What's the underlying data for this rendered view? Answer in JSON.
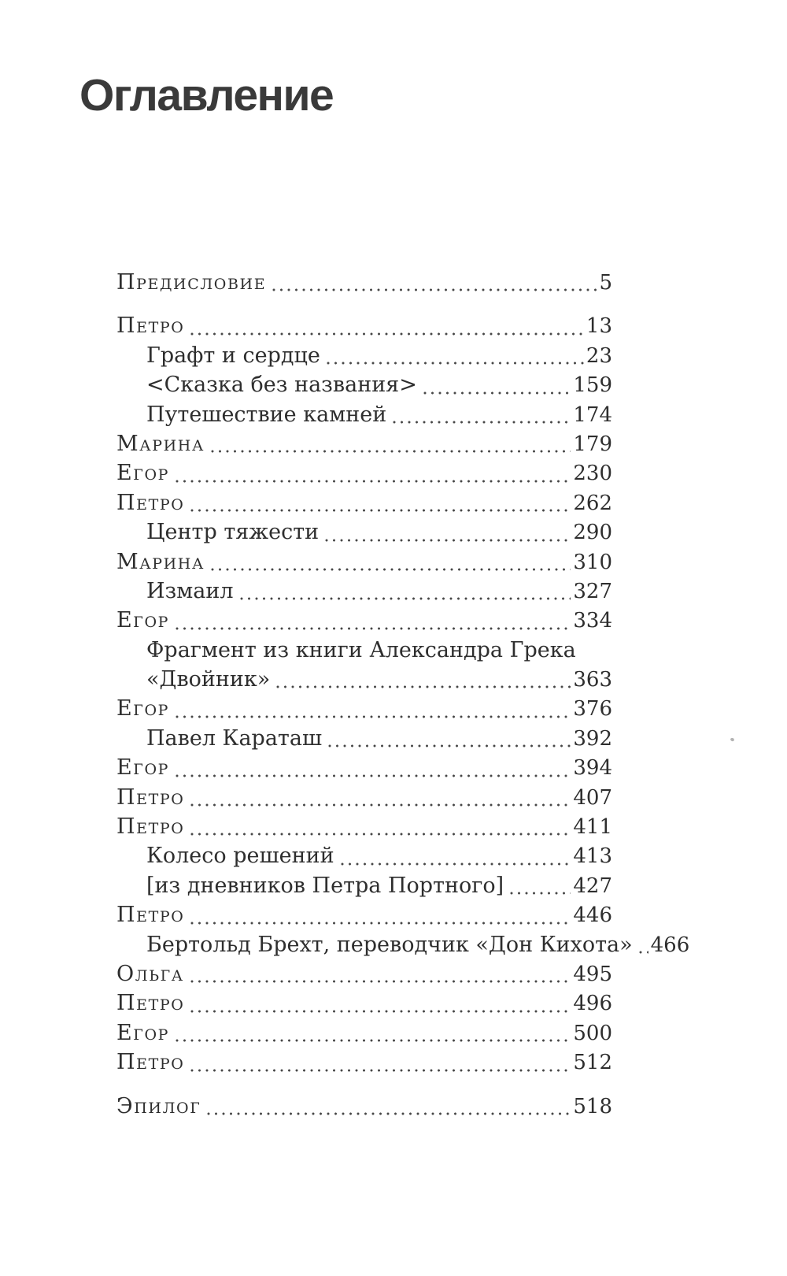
{
  "page": {
    "title": "Оглавление"
  },
  "colors": {
    "background": "#ffffff",
    "text": "#2e2e2e",
    "title": "#3a3a3a",
    "leader_dots": "#474747"
  },
  "toc": {
    "entries": [
      {
        "text": "Предисловие",
        "page": "5",
        "level": "section",
        "gap_before": false
      },
      {
        "text": "Петро",
        "page": "13",
        "level": "section",
        "gap_before": true
      },
      {
        "text": "Графт и сердце",
        "page": "23",
        "level": "sub"
      },
      {
        "text": "<Сказка без названия>",
        "page": "159",
        "level": "sub"
      },
      {
        "text": "Путешествие камней",
        "page": "174",
        "level": "sub"
      },
      {
        "text": "Марина",
        "page": "179",
        "level": "section"
      },
      {
        "text": "Егор",
        "page": "230",
        "level": "section"
      },
      {
        "text": "Петро",
        "page": "262",
        "level": "section"
      },
      {
        "text": "Центр тяжести",
        "page": "290",
        "level": "sub"
      },
      {
        "text": "Марина",
        "page": "310",
        "level": "section"
      },
      {
        "text": "Измаил",
        "page": "327",
        "level": "sub"
      },
      {
        "text": "Егор",
        "page": "334",
        "level": "section"
      },
      {
        "text": "Фрагмент из книги Александра Грека",
        "text2": "«Двойник»",
        "page": "363",
        "level": "sub"
      },
      {
        "text": "Егор",
        "page": "376",
        "level": "section"
      },
      {
        "text": "Павел Караташ",
        "page": "392",
        "level": "sub"
      },
      {
        "text": "Егор",
        "page": "394",
        "level": "section"
      },
      {
        "text": "Петро",
        "page": "407",
        "level": "section"
      },
      {
        "text": "Петро",
        "page": "411",
        "level": "section"
      },
      {
        "text": "Колесо решений",
        "page": "413",
        "level": "sub"
      },
      {
        "text": "[из дневников Петра Портного]",
        "page": "427",
        "level": "sub"
      },
      {
        "text": "Петро",
        "page": "446",
        "level": "section"
      },
      {
        "text": "Бертольд Брехт, переводчик «Дон Кихота»",
        "page": "466",
        "level": "sub"
      },
      {
        "text": "Ольга",
        "page": "495",
        "level": "section"
      },
      {
        "text": "Петро",
        "page": "496",
        "level": "section"
      },
      {
        "text": "Егор",
        "page": "500",
        "level": "section"
      },
      {
        "text": "Петро",
        "page": "512",
        "level": "section"
      },
      {
        "text": "Эпилог",
        "page": "518",
        "level": "section",
        "gap_before": true
      }
    ]
  }
}
